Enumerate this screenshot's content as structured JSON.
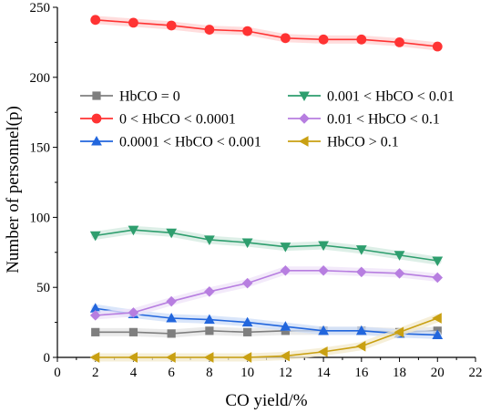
{
  "chart_data": {
    "type": "line",
    "title": "",
    "xlabel": "CO yield/%",
    "ylabel": "Number of personnel(p)",
    "xlim": [
      0,
      22
    ],
    "ylim": [
      0,
      250
    ],
    "xticks": [
      0,
      2,
      4,
      6,
      8,
      10,
      12,
      14,
      16,
      18,
      20,
      22
    ],
    "yticks": [
      0,
      50,
      100,
      150,
      200,
      250
    ],
    "grid": false,
    "legend_position": "center-left",
    "x": [
      2,
      4,
      6,
      8,
      10,
      12,
      14,
      16,
      18,
      20
    ],
    "series": [
      {
        "name": "HbCO = 0",
        "color": "#7f7f7f",
        "marker": "square",
        "values": [
          18,
          18,
          17,
          19,
          18,
          19,
          19,
          19,
          18,
          19
        ]
      },
      {
        "name": "0 < HbCO < 0.0001",
        "color": "#ff3333",
        "marker": "circle",
        "values": [
          241,
          239,
          237,
          234,
          233,
          228,
          227,
          227,
          225,
          222
        ]
      },
      {
        "name": "0.0001 < HbCO < 0.001",
        "color": "#2266dd",
        "marker": "triangle-up",
        "values": [
          35,
          31,
          28,
          27,
          25,
          22,
          19,
          19,
          17,
          16
        ]
      },
      {
        "name": "0.001 < HbCO < 0.01",
        "color": "#2e9e6e",
        "marker": "triangle-down",
        "values": [
          87,
          91,
          89,
          84,
          82,
          79,
          80,
          77,
          73,
          69
        ]
      },
      {
        "name": "0.01 < HbCO < 0.1",
        "color": "#b77ee0",
        "marker": "diamond",
        "values": [
          30,
          32,
          40,
          47,
          53,
          62,
          62,
          61,
          60,
          57
        ]
      },
      {
        "name": "HbCO > 0.1",
        "color": "#c9a012",
        "marker": "triangle-left",
        "values": [
          0,
          0,
          0,
          0,
          0,
          1,
          4,
          8,
          18,
          28
        ]
      }
    ]
  }
}
